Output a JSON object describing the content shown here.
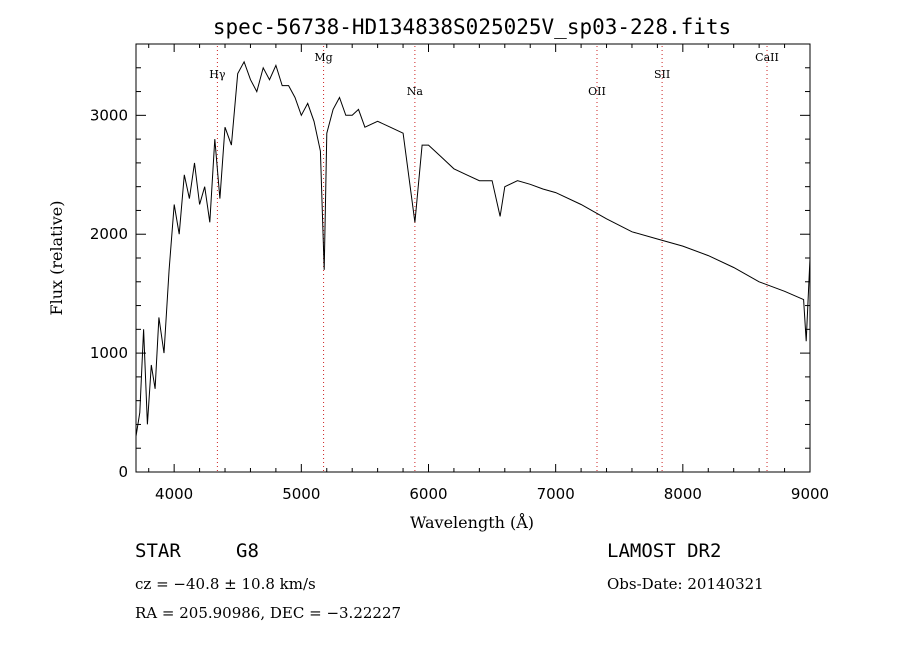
{
  "chart_data": {
    "type": "line",
    "title": "spec-56738-HD134838S025025V_sp03-228.fits",
    "xlabel": "Wavelength (Å)",
    "ylabel": "Flux (relative)",
    "xlim": [
      3700,
      9000
    ],
    "ylim": [
      0,
      3600
    ],
    "xticks": [
      4000,
      5000,
      6000,
      7000,
      8000,
      9000
    ],
    "yticks": [
      0,
      1000,
      2000,
      3000
    ],
    "grid": false,
    "series": [
      {
        "x": [
          3700,
          3730,
          3760,
          3790,
          3820,
          3850,
          3880,
          3920,
          3960,
          4000,
          4040,
          4080,
          4120,
          4160,
          4200,
          4240,
          4280,
          4320,
          4360,
          4400,
          4450,
          4500,
          4550,
          4600,
          4650,
          4700,
          4750,
          4800,
          4850,
          4900,
          4950,
          5000,
          5050,
          5100,
          5150,
          5180,
          5200,
          5250,
          5300,
          5350,
          5400,
          5450,
          5500,
          5600,
          5700,
          5800,
          5893,
          5950,
          6000,
          6100,
          6200,
          6300,
          6400,
          6500,
          6563,
          6600,
          6700,
          6800,
          6900,
          7000,
          7200,
          7400,
          7600,
          7800,
          8000,
          8200,
          8400,
          8600,
          8800,
          8950,
          8970,
          9000
        ],
        "y": [
          300,
          500,
          1200,
          400,
          900,
          700,
          1300,
          1000,
          1700,
          2250,
          2000,
          2500,
          2300,
          2600,
          2250,
          2400,
          2100,
          2800,
          2300,
          2900,
          2750,
          3350,
          3450,
          3300,
          3200,
          3400,
          3300,
          3420,
          3250,
          3250,
          3150,
          3000,
          3100,
          2950,
          2700,
          1700,
          2850,
          3050,
          3150,
          3000,
          3000,
          3050,
          2900,
          2950,
          2900,
          2850,
          2100,
          2750,
          2750,
          2650,
          2550,
          2500,
          2450,
          2450,
          2150,
          2400,
          2450,
          2420,
          2380,
          2350,
          2250,
          2130,
          2020,
          1960,
          1900,
          1820,
          1720,
          1600,
          1520,
          1450,
          1100,
          1800
        ]
      }
    ],
    "annotations": [
      {
        "label": "Hγ",
        "x": 4340
      },
      {
        "label": "Mg",
        "x": 5175
      },
      {
        "label": "Na",
        "x": 5893
      },
      {
        "label": "OII",
        "x": 7325
      },
      {
        "label": "SII",
        "x": 7837
      },
      {
        "label": "CaII",
        "x": 8662
      }
    ]
  },
  "info": {
    "object_type": "STAR",
    "subclass": "G8",
    "cz": "cz = −40.8 ± 10.8 km/s",
    "coords": "RA = 205.90986, DEC =  −3.22227",
    "survey": "LAMOST DR2",
    "obs_date": "Obs-Date: 20140321"
  },
  "colors": {
    "line": "#000000",
    "marker_lines": "#cc2222"
  }
}
